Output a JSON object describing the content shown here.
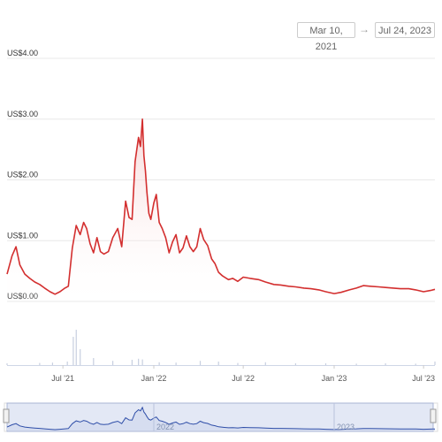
{
  "range_selector": {
    "from": "Mar 10, 2021",
    "arrow": "→",
    "to": "Jul 24, 2023"
  },
  "colors": {
    "price_line": "#d32f2f",
    "price_fill": "#f7d9d9",
    "volume": "#c7cfe0",
    "navigator_line": "#2f4ea8",
    "navigator_fill": "#d6ddf0",
    "grid": "#e8e8e8"
  },
  "chart_data": {
    "type": "line",
    "title": "",
    "xlabel": "",
    "ylabel": "",
    "y_tick_labels": [
      "US$0.00",
      "US$1.00",
      "US$2.00",
      "US$3.00",
      "US$4.00"
    ],
    "ylim": [
      0,
      4
    ],
    "x_tick_labels": [
      "Jul '21",
      "Jan '22",
      "Jul '22",
      "Jan '23",
      "Jul '23"
    ],
    "x_ticks": [
      "2021-07-01",
      "2022-01-01",
      "2022-07-01",
      "2023-01-01",
      "2023-07-01"
    ],
    "xlim": [
      "2021-03-10",
      "2023-07-24"
    ],
    "grid": true,
    "series": [
      {
        "values_are": "price",
        "x": [
          "2021-03-10",
          "2021-03-20",
          "2021-03-28",
          "2021-04-05",
          "2021-04-15",
          "2021-04-25",
          "2021-05-05",
          "2021-05-15",
          "2021-05-25",
          "2021-06-05",
          "2021-06-15",
          "2021-06-25",
          "2021-07-05",
          "2021-07-12",
          "2021-07-20",
          "2021-07-28",
          "2021-08-05",
          "2021-08-12",
          "2021-08-18",
          "2021-08-25",
          "2021-09-01",
          "2021-09-08",
          "2021-09-15",
          "2021-09-22",
          "2021-10-01",
          "2021-10-10",
          "2021-10-20",
          "2021-10-28",
          "2021-11-05",
          "2021-11-12",
          "2021-11-18",
          "2021-11-24",
          "2021-12-01",
          "2021-12-05",
          "2021-12-09",
          "2021-12-12",
          "2021-12-15",
          "2021-12-18",
          "2021-12-22",
          "2021-12-26",
          "2022-01-01",
          "2022-01-06",
          "2022-01-12",
          "2022-01-18",
          "2022-01-25",
          "2022-02-01",
          "2022-02-08",
          "2022-02-15",
          "2022-02-22",
          "2022-03-01",
          "2022-03-08",
          "2022-03-15",
          "2022-03-22",
          "2022-03-29",
          "2022-04-05",
          "2022-04-12",
          "2022-04-20",
          "2022-04-28",
          "2022-05-05",
          "2022-05-12",
          "2022-05-20",
          "2022-06-01",
          "2022-06-10",
          "2022-06-20",
          "2022-07-01",
          "2022-07-15",
          "2022-08-01",
          "2022-08-15",
          "2022-09-01",
          "2022-09-15",
          "2022-10-01",
          "2022-10-15",
          "2022-11-01",
          "2022-11-15",
          "2022-12-01",
          "2022-12-15",
          "2023-01-01",
          "2023-01-15",
          "2023-02-01",
          "2023-02-15",
          "2023-03-01",
          "2023-03-15",
          "2023-04-01",
          "2023-04-15",
          "2023-05-01",
          "2023-05-15",
          "2023-06-01",
          "2023-06-15",
          "2023-07-01",
          "2023-07-15",
          "2023-07-24"
        ],
        "values": [
          0.45,
          0.75,
          0.9,
          0.6,
          0.45,
          0.38,
          0.32,
          0.28,
          0.22,
          0.16,
          0.12,
          0.16,
          0.22,
          0.25,
          0.88,
          1.25,
          1.1,
          1.3,
          1.2,
          0.95,
          0.8,
          1.05,
          0.82,
          0.78,
          0.82,
          1.05,
          1.2,
          0.9,
          1.65,
          1.38,
          1.35,
          2.3,
          2.7,
          2.55,
          3.0,
          2.4,
          2.15,
          1.8,
          1.45,
          1.35,
          1.62,
          1.76,
          1.3,
          1.2,
          1.05,
          0.8,
          0.98,
          1.1,
          0.8,
          0.88,
          1.08,
          0.9,
          0.82,
          0.9,
          1.2,
          1.02,
          0.92,
          0.7,
          0.62,
          0.48,
          0.42,
          0.36,
          0.38,
          0.33,
          0.4,
          0.38,
          0.36,
          0.32,
          0.28,
          0.27,
          0.25,
          0.24,
          0.22,
          0.21,
          0.19,
          0.16,
          0.13,
          0.15,
          0.19,
          0.22,
          0.26,
          0.25,
          0.24,
          0.23,
          0.22,
          0.21,
          0.21,
          0.19,
          0.16,
          0.18,
          0.2
        ]
      },
      {
        "values_are": "volume",
        "x": [
          "2021-03-10",
          "2021-05-15",
          "2021-06-10",
          "2021-07-10",
          "2021-07-22",
          "2021-07-28",
          "2021-08-05",
          "2021-09-01",
          "2021-10-10",
          "2021-11-18",
          "2021-12-01",
          "2021-12-09",
          "2022-01-12",
          "2022-02-15",
          "2022-04-05",
          "2022-05-12",
          "2022-06-20",
          "2022-08-15",
          "2022-10-15",
          "2022-12-15",
          "2023-02-15",
          "2023-04-15",
          "2023-06-15",
          "2023-07-24"
        ],
        "values": [
          0.05,
          0.06,
          0.07,
          0.1,
          0.8,
          1.0,
          0.45,
          0.2,
          0.12,
          0.15,
          0.18,
          0.16,
          0.08,
          0.07,
          0.12,
          0.1,
          0.06,
          0.08,
          0.05,
          0.05,
          0.04,
          0.05,
          0.04,
          0.1
        ]
      }
    ]
  },
  "navigator": {
    "year_labels": [
      "2022",
      "2023"
    ],
    "year_ticks": [
      "2022-01-01",
      "2023-01-01"
    ]
  }
}
